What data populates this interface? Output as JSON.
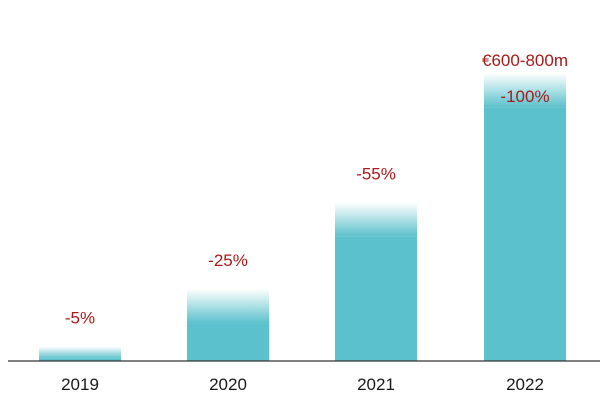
{
  "chart_data": {
    "type": "bar",
    "categories": [
      "2019",
      "2020",
      "2021",
      "2022"
    ],
    "series": [
      {
        "values": [
          5,
          25,
          55,
          100
        ]
      }
    ],
    "data_labels": [
      "-5%",
      "-25%",
      "-55%",
      "-100%"
    ],
    "annotation": "€600-800m",
    "ylim": [
      0,
      115
    ],
    "bar_color": "#5bc1cc",
    "label_color": "#a61b1b",
    "grid": false,
    "legend": "none"
  }
}
